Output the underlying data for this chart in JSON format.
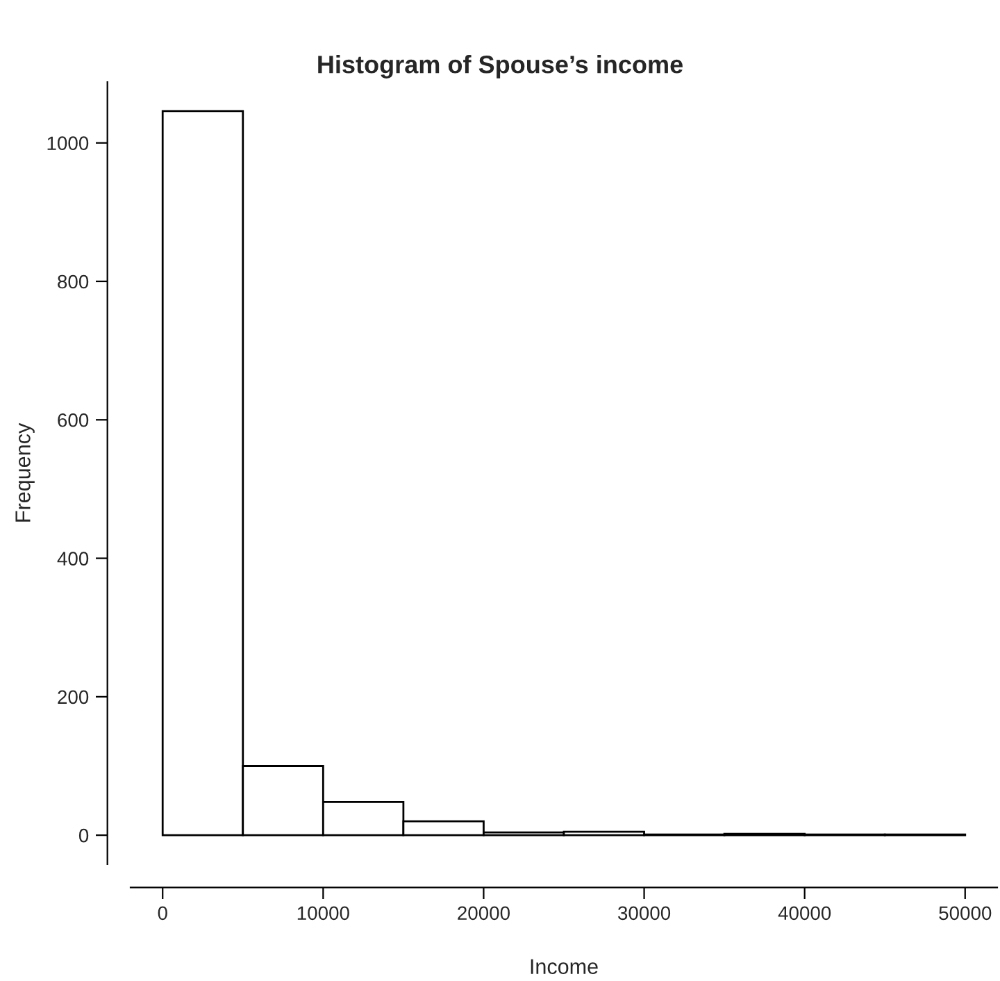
{
  "chart_data": {
    "type": "histogram",
    "title": "Histogram of Spouse’s income",
    "xlabel": "Income",
    "ylabel": "Frequency",
    "bins": [
      0,
      5000,
      10000,
      15000,
      20000,
      25000,
      30000,
      35000,
      40000,
      45000,
      50000
    ],
    "values": [
      1046,
      100,
      48,
      20,
      4,
      5,
      1,
      2,
      1,
      1
    ],
    "color": "#ffffff",
    "xlim": [
      -2000,
      52000
    ],
    "ylim": [
      -42,
      1088
    ],
    "xticks": [
      0,
      10000,
      20000,
      30000,
      40000,
      50000
    ],
    "yticks": [
      0,
      200,
      400,
      600,
      800,
      1000
    ],
    "grid": false
  }
}
